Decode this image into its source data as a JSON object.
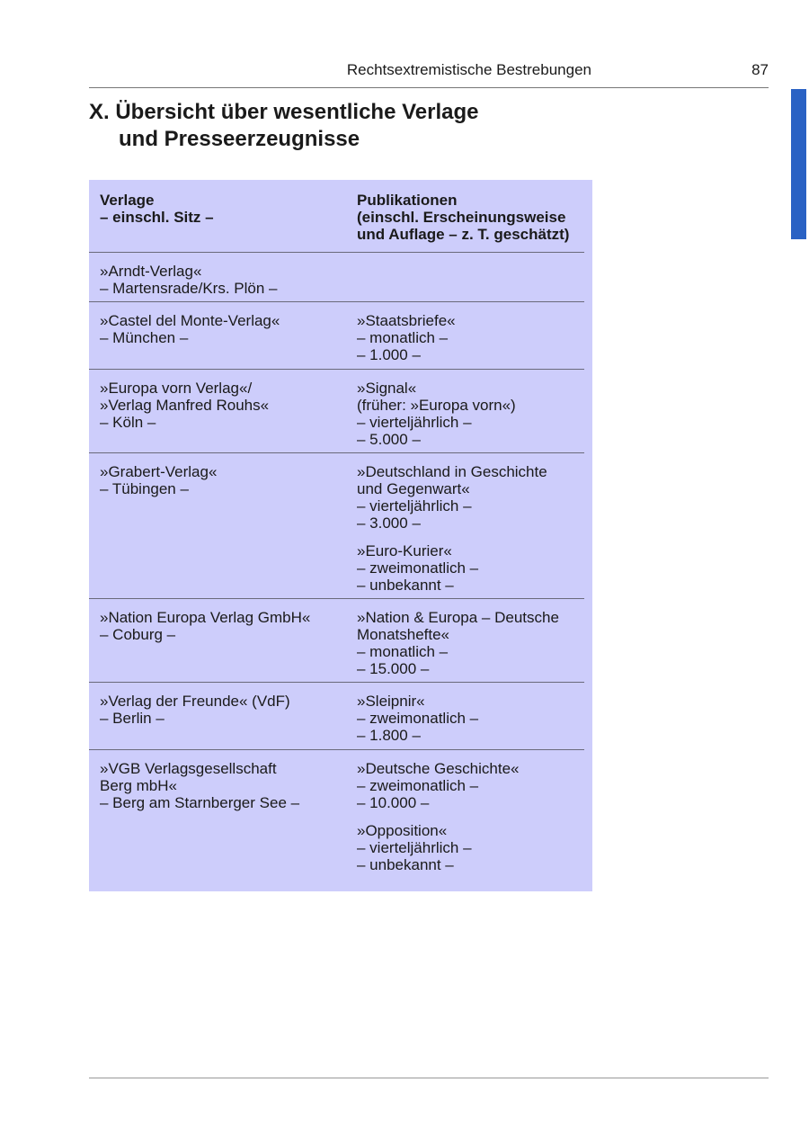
{
  "header": {
    "running_title": "Rechtsextremistische Bestrebungen",
    "page_number": "87"
  },
  "accent_color": "#2a62c4",
  "table_bg_color": "#cdcdfb",
  "title": {
    "line1": "X. Übersicht über wesentliche Verlage",
    "line2": "und Presseerzeugnisse"
  },
  "table": {
    "columns": [
      "Verlage\n– einschl. Sitz –",
      "Publikationen\n(einschl. Erscheinungsweise\nund Auflage – z. T. geschätzt)"
    ],
    "rows": [
      {
        "verlag": "»Arndt-Verlag«\n– Martensrade/Krs. Plön –",
        "publikationen": []
      },
      {
        "verlag": "»Castel del Monte-Verlag«\n– München –",
        "publikationen": [
          "»Staatsbriefe«\n– monatlich –\n– 1.000 –"
        ]
      },
      {
        "verlag": "»Europa vorn Verlag«/\n»Verlag Manfred Rouhs«\n– Köln –",
        "publikationen": [
          "»Signal«\n(früher: »Europa vorn«)\n– vierteljährlich –\n– 5.000 –"
        ]
      },
      {
        "verlag": "»Grabert-Verlag«\n– Tübingen –",
        "publikationen": [
          "»Deutschland in Geschichte\nund Gegenwart«\n– vierteljährlich –\n– 3.000 –",
          "»Euro-Kurier«\n– zweimonatlich –\n– unbekannt –"
        ]
      },
      {
        "verlag": "»Nation Europa Verlag GmbH«\n– Coburg –",
        "publikationen": [
          "»Nation & Europa – Deutsche\nMonatshefte«\n– monatlich –\n– 15.000 –"
        ]
      },
      {
        "verlag": "»Verlag der Freunde« (VdF)\n– Berlin –",
        "publikationen": [
          "»Sleipnir«\n– zweimonatlich –\n– 1.800 –"
        ]
      },
      {
        "verlag": "»VGB Verlagsgesellschaft\nBerg mbH«\n– Berg am Starnberger See –",
        "publikationen": [
          "»Deutsche Geschichte«\n– zweimonatlich –\n– 10.000 –",
          "»Opposition«\n– vierteljährlich –\n– unbekannt –"
        ]
      }
    ]
  }
}
